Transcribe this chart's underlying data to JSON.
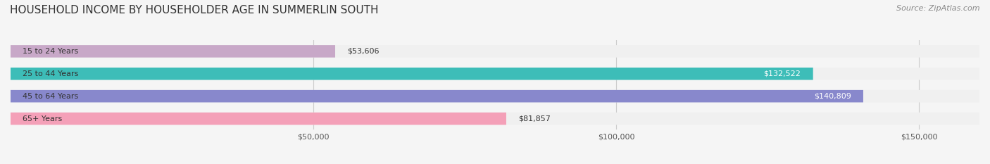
{
  "title": "HOUSEHOLD INCOME BY HOUSEHOLDER AGE IN SUMMERLIN SOUTH",
  "source": "Source: ZipAtlas.com",
  "categories": [
    "15 to 24 Years",
    "25 to 44 Years",
    "45 to 64 Years",
    "65+ Years"
  ],
  "values": [
    53606,
    132522,
    140809,
    81857
  ],
  "bar_colors": [
    "#c8a8c8",
    "#3dbdb8",
    "#8888cc",
    "#f4a0b8"
  ],
  "bar_bg_color": "#f0f0f0",
  "label_colors": [
    "#333333",
    "#ffffff",
    "#ffffff",
    "#333333"
  ],
  "xlim": [
    0,
    160000
  ],
  "xticks": [
    50000,
    100000,
    150000
  ],
  "xtick_labels": [
    "$50,000",
    "$100,000",
    "$150,000"
  ],
  "bg_color": "#f5f5f5",
  "title_fontsize": 11,
  "source_fontsize": 8,
  "bar_height": 0.55,
  "figsize": [
    14.06,
    2.33
  ],
  "dpi": 100
}
